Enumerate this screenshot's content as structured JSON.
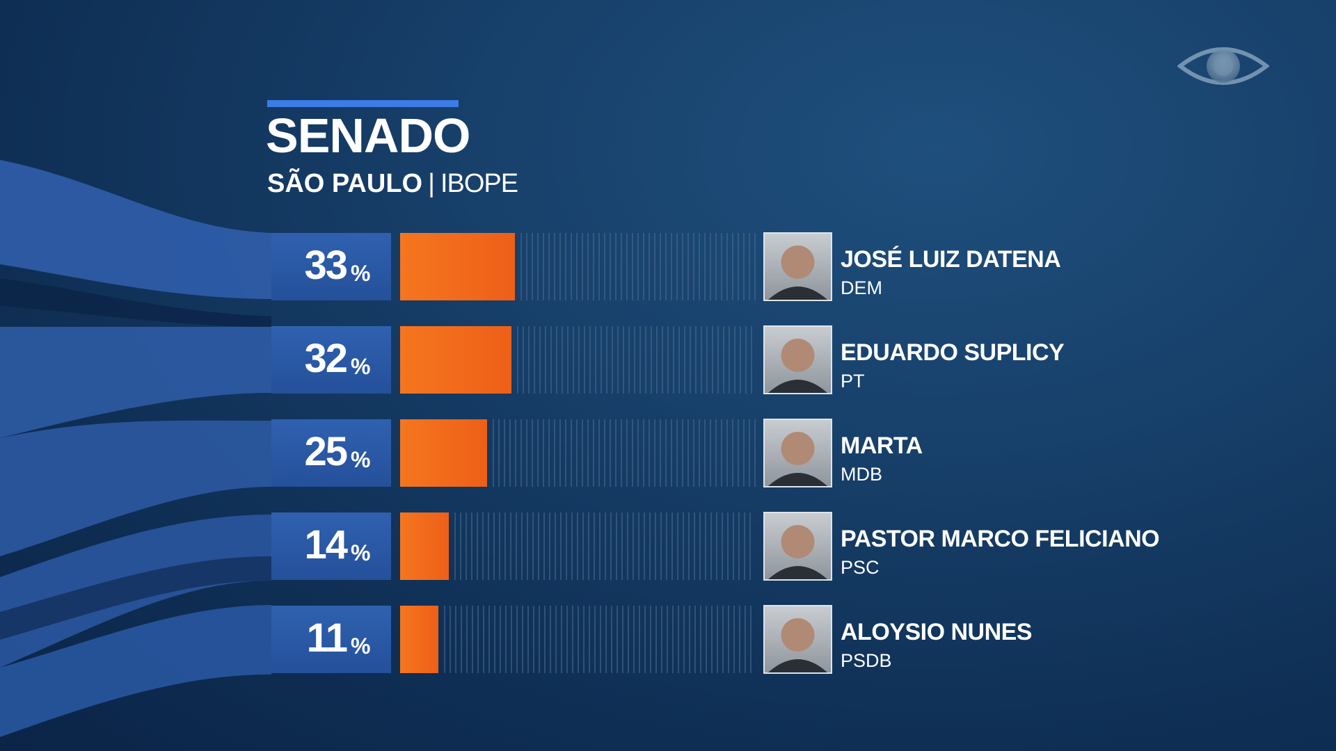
{
  "header": {
    "title": "SENADO",
    "state": "SÃO PAULO",
    "separator": "|",
    "source": "IBOPE"
  },
  "logo": {
    "icon": "broadcaster-eye-logo-icon"
  },
  "colors": {
    "bar_fill": "#f26b1d",
    "value_box": "#2b59a8",
    "accent": "#3d7be6",
    "background": "#123a63"
  },
  "chart_data": {
    "type": "bar",
    "orientation": "horizontal",
    "title": "SENADO",
    "subtitle": "SÃO PAULO | IBOPE",
    "unit": "%",
    "xlim": [
      0,
      100
    ],
    "categories": [
      "JOSÉ LUIZ DATENA",
      "EDUARDO SUPLICY",
      "MARTA",
      "PASTOR MARCO FELICIANO",
      "ALOYSIO NUNES"
    ],
    "parties": [
      "DEM",
      "PT",
      "MDB",
      "PSC",
      "PSDB"
    ],
    "values": [
      33,
      32,
      25,
      14,
      11
    ],
    "grid": false,
    "legend": "none"
  }
}
